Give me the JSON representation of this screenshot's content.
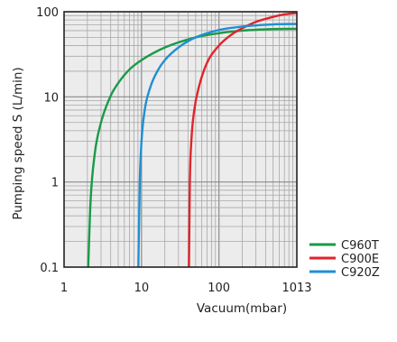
{
  "chart_data": {
    "type": "line",
    "xlabel": "Vacuum(mbar)",
    "ylabel": "Pumping speed S (L/min)",
    "x_scale": "log",
    "y_scale": "log",
    "xlim": [
      1,
      1013
    ],
    "ylim": [
      0.1,
      100
    ],
    "x_ticks": [
      {
        "value": 1,
        "label": "1"
      },
      {
        "value": 10,
        "label": "10"
      },
      {
        "value": 100,
        "label": "100"
      },
      {
        "value": 1013,
        "label": "1013"
      }
    ],
    "y_ticks": [
      {
        "value": 0.1,
        "label": "0.1"
      },
      {
        "value": 1,
        "label": "1"
      },
      {
        "value": 10,
        "label": "10"
      },
      {
        "value": 100,
        "label": "100"
      }
    ],
    "grid": true,
    "legend_position": "right",
    "series": [
      {
        "name": "C960T",
        "color": "#1a9a47",
        "x": [
          2.05,
          2.2,
          2.5,
          3,
          4,
          5,
          7,
          10,
          20,
          50,
          100,
          200,
          500,
          1013
        ],
        "y": [
          0.1,
          0.6,
          2.2,
          5.0,
          10.3,
          14.5,
          21,
          27,
          38,
          50,
          56,
          60,
          62.5,
          63
        ]
      },
      {
        "name": "C900E",
        "color": "#e0242b",
        "x": [
          41,
          42,
          44,
          48,
          55,
          70,
          100,
          150,
          200,
          300,
          500,
          700,
          1013
        ],
        "y": [
          0.1,
          0.9,
          3.0,
          7.0,
          13,
          25,
          40,
          55,
          64,
          76,
          87,
          93,
          97
        ]
      },
      {
        "name": "C920Z",
        "color": "#1f8fd3",
        "x": [
          9.1,
          9.5,
          10,
          11,
          13,
          16,
          20,
          30,
          50,
          100,
          200,
          500,
          1013
        ],
        "y": [
          0.1,
          1.0,
          3.0,
          7.0,
          13,
          20,
          27,
          38,
          50,
          61,
          67,
          71,
          72
        ]
      }
    ]
  }
}
